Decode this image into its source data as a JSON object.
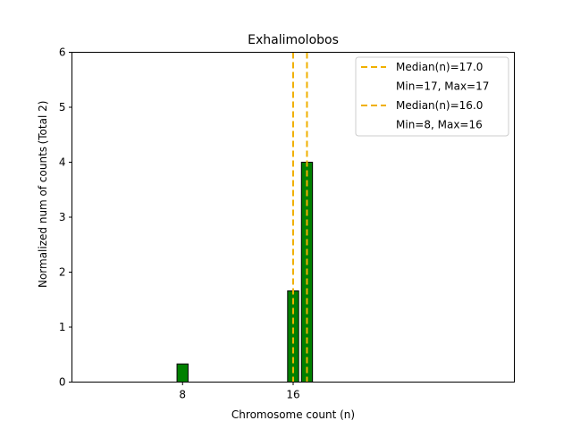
{
  "chart_data": {
    "type": "bar",
    "title": "Exhalimolobos",
    "xlabel": "Chromosome count (n)",
    "ylabel": "Normalized num of counts",
    "ylabel_note": "(Total 2)",
    "xlim": [
      0,
      32
    ],
    "ylim": [
      0,
      6
    ],
    "x_ticks": [
      8,
      16
    ],
    "y_ticks": [
      0,
      1,
      2,
      3,
      4,
      5,
      6
    ],
    "grid": false,
    "legend_position": "top-right",
    "bar_color": "#008000",
    "median_color": "#f0b000",
    "bars": [
      {
        "x": 8,
        "value": 0.33
      },
      {
        "x": 16,
        "value": 1.66
      },
      {
        "x": 17,
        "value": 4.0
      }
    ],
    "flat_segment": {
      "from": 2,
      "to": 20.5,
      "value": 0
    },
    "medians": [
      {
        "x": 17.0,
        "label": "Median(n)=17.0",
        "range_label": "Min=17, Max=17"
      },
      {
        "x": 16.0,
        "label": "Median(n)=16.0",
        "range_label": "Min=8, Max=16"
      }
    ]
  }
}
